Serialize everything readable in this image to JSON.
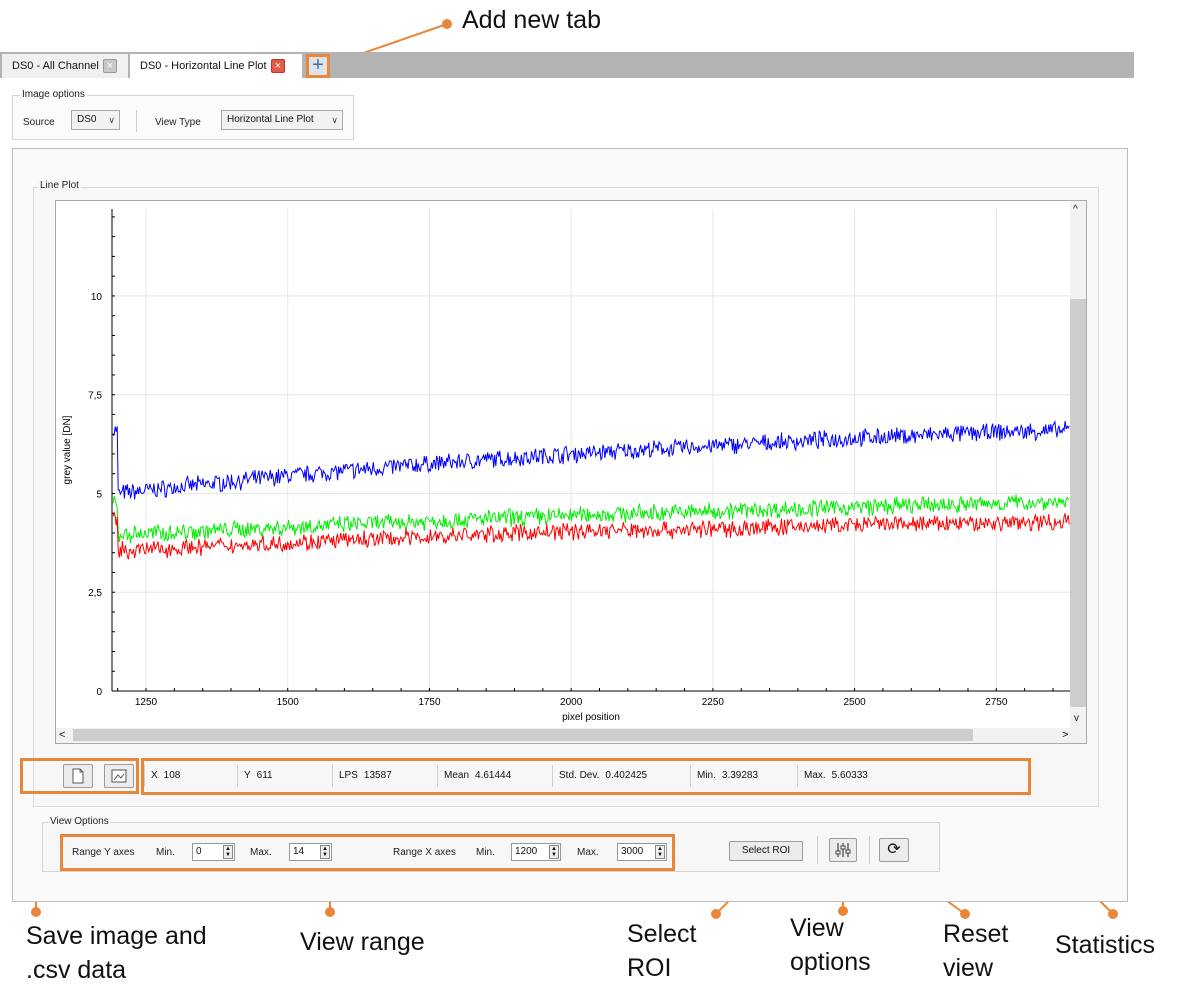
{
  "annotations": {
    "add_new_tab": "Add new tab",
    "save_image": [
      "Save image and",
      ".csv data"
    ],
    "view_range": "View range",
    "select_roi": [
      "Select",
      "ROI"
    ],
    "view_options": [
      "View",
      "options"
    ],
    "reset_view": [
      "Reset",
      "view"
    ],
    "statistics": "Statistics",
    "accent_color": "#e8873a"
  },
  "tabs": [
    {
      "label": "DS0 - All Channel",
      "close_icon": "close-grey-icon"
    },
    {
      "label": "DS0 - Horizontal Line Plot",
      "close_icon": "close-red-icon"
    }
  ],
  "add_tab_icon": "plus-icon",
  "image_options": {
    "title": "Image options",
    "source_label": "Source",
    "source_value": "DS0",
    "view_type_label": "View Type",
    "view_type_value": "Horizontal Line Plot"
  },
  "line_plot": {
    "title": "Line Plot"
  },
  "chart_data": {
    "type": "line",
    "title": "",
    "xlabel": "pixel position",
    "ylabel": "grey value [DN]",
    "xlim": [
      1190,
      2880
    ],
    "ylim": [
      0,
      12.2
    ],
    "x_ticks": [
      1250,
      1500,
      1750,
      2000,
      2250,
      2500,
      2750
    ],
    "x_tick_labels": [
      "1250",
      "1500",
      "1750",
      "2000",
      "2250",
      "2500",
      "2750"
    ],
    "y_ticks": [
      0,
      2.5,
      5,
      7.5,
      10
    ],
    "y_tick_labels": [
      "0",
      "2,5",
      "5",
      "7,5",
      "10"
    ],
    "grid": true,
    "series": [
      {
        "color": "#0000ff",
        "x": [
          1200,
          1500,
          1750,
          2000,
          2250,
          2500,
          2750,
          2880
        ],
        "values": [
          5.0,
          5.45,
          5.75,
          6.0,
          6.2,
          6.4,
          6.55,
          6.6
        ]
      },
      {
        "color": "#00ee00",
        "x": [
          1200,
          1500,
          1750,
          2000,
          2250,
          2500,
          2750,
          2880
        ],
        "values": [
          3.95,
          4.15,
          4.3,
          4.45,
          4.55,
          4.65,
          4.75,
          4.8
        ]
      },
      {
        "color": "#ff0000",
        "x": [
          1200,
          1500,
          1750,
          2000,
          2250,
          2500,
          2750,
          2880
        ],
        "values": [
          3.55,
          3.75,
          3.9,
          4.05,
          4.1,
          4.2,
          4.25,
          4.3
        ]
      }
    ]
  },
  "stats": {
    "x_label": "X",
    "x_value": "108",
    "y_label": "Y",
    "y_value": "611",
    "lps_label": "LPS",
    "lps_value": "13587",
    "mean_label": "Mean",
    "mean_value": "4.61444",
    "std_label": "Std. Dev.",
    "std_value": "0.402425",
    "min_label": "Min.",
    "min_value": "3.39283",
    "max_label": "Max.",
    "max_value": "5.60333"
  },
  "view_options": {
    "title": "View Options",
    "range_y_label": "Range Y axes",
    "y_min_label": "Min.",
    "y_min_value": "0",
    "y_max_label": "Max.",
    "y_max_value": "14",
    "range_x_label": "Range X axes",
    "x_min_label": "Min.",
    "x_min_value": "1200",
    "x_max_label": "Max.",
    "x_max_value": "3000",
    "select_roi_label": "Select ROI"
  },
  "icons": {
    "save_image": "save-file-icon",
    "save_csv": "image-icon",
    "view_options": "sliders-icon",
    "reset": "refresh-icon",
    "scroll_up": "^",
    "scroll_down": "v",
    "scroll_left": "<",
    "scroll_right": ">"
  }
}
